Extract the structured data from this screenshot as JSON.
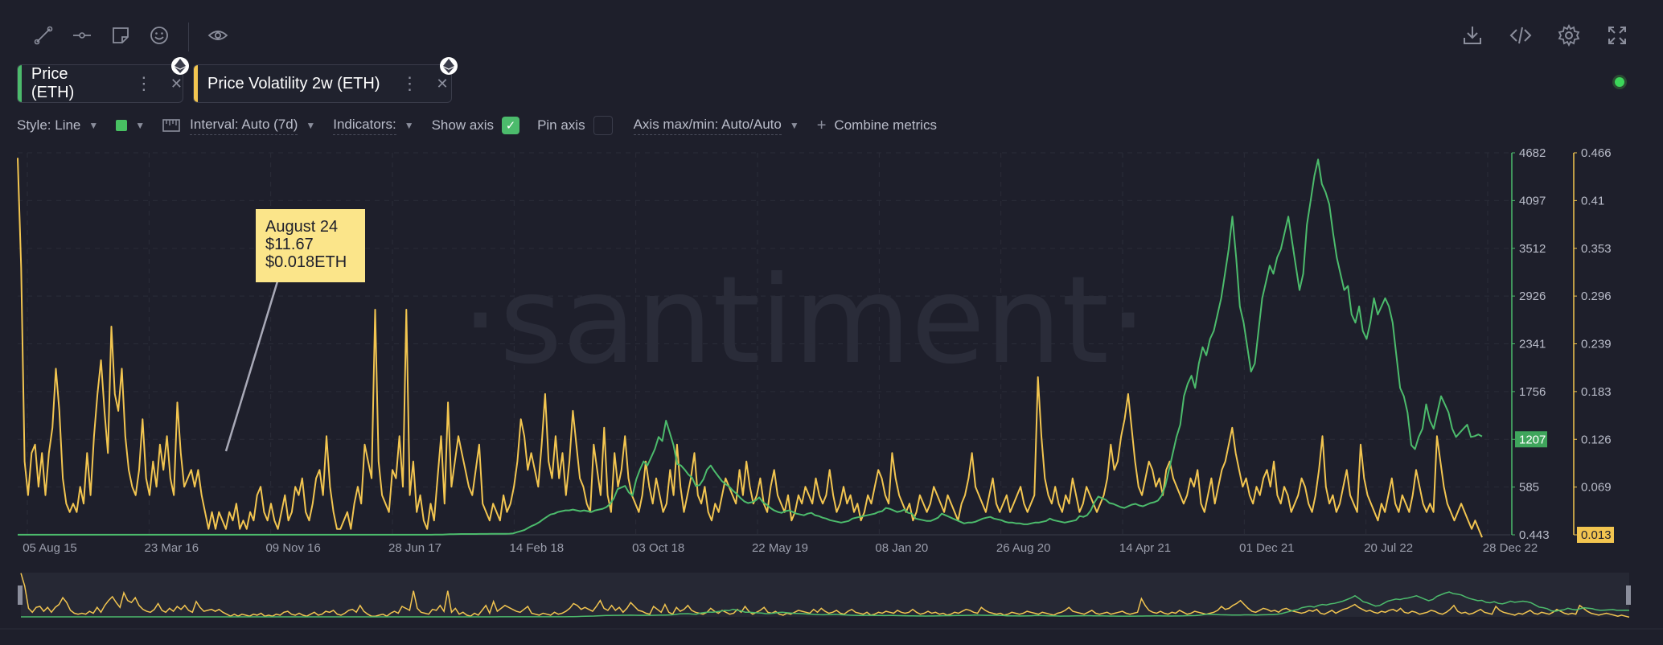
{
  "toolbar": {
    "left_icons": [
      "line-tool-icon",
      "horizontal-ray-icon",
      "note-icon",
      "emoji-icon",
      "eye-icon"
    ],
    "right_icons": [
      "download-icon",
      "embed-code-icon",
      "settings-icon",
      "fullscreen-icon"
    ]
  },
  "metrics": [
    {
      "label": "Price (ETH)",
      "color": "#4cbb6c"
    },
    {
      "label": "Price Volatility 2w (ETH)",
      "color": "#f2c550"
    }
  ],
  "settings": {
    "style": "Style: Line",
    "interval": "Interval: Auto (7d)",
    "indicators": "Indicators:",
    "show_axis": "Show axis",
    "pin_axis": "Pin axis",
    "axis_maxmin": "Axis max/min: Auto/Auto",
    "combine": "Combine metrics"
  },
  "watermark": "·santiment·",
  "tooltip": {
    "date": "August 24",
    "price_usd": "$11.67",
    "price_eth": "$0.018ETH"
  },
  "chart_data": {
    "type": "line",
    "x_ticks": [
      "05 Aug 15",
      "23 Mar 16",
      "09 Nov 16",
      "28 Jun 17",
      "14 Feb 18",
      "03 Oct 18",
      "22 May 19",
      "08 Jan 20",
      "26 Aug 20",
      "14 Apr 21",
      "01 Dec 21",
      "20 Jul 22",
      "28 Dec 22"
    ],
    "price_axis_ticks": [
      "4682",
      "4097",
      "3512",
      "2926",
      "2341",
      "1756",
      "1207",
      "585",
      "0.443"
    ],
    "volatility_axis_ticks": [
      "0.466",
      "0.41",
      "0.353",
      "0.296",
      "0.239",
      "0.183",
      "0.126",
      "0.069",
      "0.013"
    ],
    "price_last_value": "1207",
    "volatility_last_value": "0.013",
    "ylim_price": [
      0.443,
      4682
    ],
    "ylim_volatility": [
      0.013,
      0.466
    ],
    "series": [
      {
        "name": "Price (ETH)",
        "color": "#4cbb6c",
        "values": [
          1,
          1,
          1,
          1,
          1,
          1,
          1,
          1,
          1,
          1,
          1,
          1,
          1,
          1,
          1,
          1,
          1,
          1,
          1,
          1,
          1,
          1,
          1,
          1,
          1,
          1,
          1,
          1,
          1,
          1,
          1,
          1,
          1,
          1,
          1,
          1,
          1,
          1,
          1,
          1,
          1,
          1,
          1,
          1,
          1,
          1,
          1,
          1,
          1,
          1,
          1,
          1,
          1,
          1,
          1,
          1,
          1,
          1,
          1,
          1,
          1,
          1,
          1,
          1,
          1,
          1,
          1,
          1,
          1,
          1,
          1,
          1,
          1,
          1,
          1,
          1,
          1,
          1,
          1,
          1,
          1,
          1,
          1,
          1,
          1,
          1,
          1,
          1,
          1,
          1,
          1,
          1,
          1,
          1,
          1,
          1,
          1,
          1,
          1,
          1,
          1,
          1,
          1,
          1,
          1,
          1,
          1,
          1,
          1,
          1,
          1,
          1,
          2,
          2,
          3,
          5,
          7,
          8,
          9,
          10,
          10,
          10,
          10,
          10,
          11,
          11,
          11,
          12,
          12,
          12,
          13,
          13,
          14,
          18,
          33,
          46,
          60,
          85,
          110,
          130,
          155,
          190,
          220,
          250,
          260,
          280,
          290,
          300,
          300,
          310,
          300,
          290,
          300,
          290,
          280,
          300,
          310,
          320,
          340,
          380,
          450,
          560,
          580,
          600,
          520,
          480,
          680,
          800,
          900,
          850,
          950,
          1050,
          1200,
          1150,
          1400,
          1250,
          1100,
          870,
          850,
          800,
          740,
          700,
          600,
          610,
          680,
          800,
          850,
          780,
          720,
          660,
          620,
          590,
          540,
          500,
          450,
          410,
          390,
          400,
          420,
          460,
          400,
          370,
          330,
          300,
          280,
          270,
          290,
          300,
          280,
          260,
          250,
          240,
          260,
          270,
          240,
          230,
          210,
          200,
          180,
          170,
          160,
          150,
          160,
          170,
          200,
          210,
          220,
          230,
          240,
          250,
          260,
          280,
          290,
          330,
          320,
          300,
          280,
          290,
          310,
          270,
          260,
          200,
          190,
          180,
          170,
          170,
          190,
          210,
          260,
          240,
          220,
          200,
          180,
          160,
          140,
          150,
          150,
          160,
          180,
          200,
          210,
          220,
          200,
          190,
          180,
          160,
          150,
          150,
          140,
          140,
          130,
          130,
          140,
          150,
          150,
          160,
          170,
          200,
          180,
          170,
          160,
          150,
          160,
          170,
          180,
          230,
          220,
          240,
          300,
          400,
          470,
          450,
          430,
          390,
          380,
          360,
          340,
          330,
          350,
          370,
          380,
          360,
          350,
          370,
          390,
          400,
          420,
          480,
          600,
          800,
          1000,
          1200,
          1350,
          1700,
          1850,
          1950,
          1800,
          2100,
          2300,
          2200,
          2400,
          2500,
          2700,
          2900,
          3200,
          3500,
          3900,
          3400,
          2800,
          2600,
          2300,
          2000,
          2100,
          2500,
          2900,
          3100,
          3300,
          3200,
          3400,
          3500,
          3700,
          3900,
          3600,
          3300,
          3000,
          3200,
          3800,
          4100,
          4400,
          4600,
          4300,
          4200,
          4050,
          3700,
          3400,
          3200,
          3000,
          3050,
          2700,
          2600,
          2800,
          2500,
          2400,
          2600,
          2900,
          2700,
          2800,
          2900,
          2800,
          2600,
          2200,
          1800,
          1700,
          1500,
          1100,
          1050,
          1200,
          1300,
          1600,
          1400,
          1300,
          1500,
          1700,
          1600,
          1500,
          1300,
          1200,
          1250,
          1300,
          1350,
          1200,
          1210,
          1230,
          1207
        ]
      },
      {
        "name": "Price Volatility 2w (ETH)",
        "color": "#f2c550",
        "values": [
          0.46,
          0.33,
          0.1,
          0.06,
          0.11,
          0.12,
          0.07,
          0.11,
          0.06,
          0.11,
          0.14,
          0.21,
          0.16,
          0.08,
          0.05,
          0.04,
          0.05,
          0.04,
          0.07,
          0.05,
          0.11,
          0.06,
          0.13,
          0.18,
          0.22,
          0.16,
          0.11,
          0.26,
          0.18,
          0.16,
          0.21,
          0.13,
          0.09,
          0.07,
          0.06,
          0.09,
          0.15,
          0.08,
          0.06,
          0.1,
          0.07,
          0.12,
          0.09,
          0.13,
          0.08,
          0.06,
          0.17,
          0.11,
          0.07,
          0.08,
          0.09,
          0.07,
          0.09,
          0.06,
          0.04,
          0.02,
          0.04,
          0.02,
          0.04,
          0.03,
          0.02,
          0.04,
          0.03,
          0.05,
          0.02,
          0.03,
          0.02,
          0.04,
          0.03,
          0.06,
          0.07,
          0.04,
          0.03,
          0.05,
          0.03,
          0.02,
          0.04,
          0.06,
          0.03,
          0.04,
          0.07,
          0.06,
          0.08,
          0.04,
          0.03,
          0.05,
          0.08,
          0.09,
          0.06,
          0.13,
          0.07,
          0.04,
          0.02,
          0.02,
          0.03,
          0.04,
          0.02,
          0.05,
          0.07,
          0.05,
          0.12,
          0.1,
          0.08,
          0.28,
          0.1,
          0.06,
          0.05,
          0.04,
          0.09,
          0.08,
          0.13,
          0.07,
          0.28,
          0.06,
          0.1,
          0.04,
          0.06,
          0.03,
          0.02,
          0.05,
          0.03,
          0.08,
          0.13,
          0.05,
          0.17,
          0.07,
          0.1,
          0.13,
          0.11,
          0.09,
          0.07,
          0.06,
          0.09,
          0.12,
          0.05,
          0.04,
          0.03,
          0.05,
          0.04,
          0.03,
          0.06,
          0.04,
          0.05,
          0.07,
          0.1,
          0.15,
          0.13,
          0.09,
          0.11,
          0.09,
          0.07,
          0.12,
          0.18,
          0.1,
          0.08,
          0.13,
          0.08,
          0.11,
          0.06,
          0.1,
          0.16,
          0.12,
          0.08,
          0.07,
          0.05,
          0.04,
          0.12,
          0.09,
          0.06,
          0.14,
          0.06,
          0.04,
          0.11,
          0.07,
          0.09,
          0.13,
          0.08,
          0.06,
          0.05,
          0.04,
          0.06,
          0.1,
          0.07,
          0.05,
          0.08,
          0.06,
          0.04,
          0.05,
          0.09,
          0.06,
          0.12,
          0.07,
          0.04,
          0.06,
          0.08,
          0.11,
          0.06,
          0.05,
          0.07,
          0.04,
          0.03,
          0.05,
          0.04,
          0.06,
          0.08,
          0.07,
          0.06,
          0.05,
          0.09,
          0.06,
          0.1,
          0.07,
          0.05,
          0.06,
          0.08,
          0.05,
          0.04,
          0.07,
          0.09,
          0.06,
          0.05,
          0.04,
          0.06,
          0.03,
          0.04,
          0.06,
          0.05,
          0.07,
          0.06,
          0.05,
          0.08,
          0.06,
          0.05,
          0.06,
          0.09,
          0.06,
          0.04,
          0.05,
          0.07,
          0.05,
          0.06,
          0.04,
          0.05,
          0.03,
          0.04,
          0.06,
          0.05,
          0.07,
          0.09,
          0.08,
          0.06,
          0.05,
          0.11,
          0.08,
          0.06,
          0.05,
          0.04,
          0.05,
          0.03,
          0.04,
          0.06,
          0.05,
          0.04,
          0.05,
          0.07,
          0.06,
          0.05,
          0.04,
          0.06,
          0.05,
          0.04,
          0.03,
          0.05,
          0.06,
          0.08,
          0.11,
          0.07,
          0.06,
          0.05,
          0.04,
          0.06,
          0.08,
          0.05,
          0.04,
          0.05,
          0.06,
          0.04,
          0.05,
          0.06,
          0.07,
          0.05,
          0.04,
          0.05,
          0.06,
          0.2,
          0.13,
          0.08,
          0.06,
          0.05,
          0.07,
          0.05,
          0.04,
          0.06,
          0.05,
          0.08,
          0.06,
          0.04,
          0.05,
          0.07,
          0.06,
          0.05,
          0.04,
          0.05,
          0.06,
          0.08,
          0.12,
          0.09,
          0.1,
          0.13,
          0.15,
          0.18,
          0.14,
          0.1,
          0.07,
          0.06,
          0.08,
          0.1,
          0.09,
          0.07,
          0.08,
          0.06,
          0.09,
          0.1,
          0.08,
          0.07,
          0.06,
          0.05,
          0.06,
          0.08,
          0.07,
          0.09,
          0.05,
          0.04,
          0.06,
          0.08,
          0.05,
          0.07,
          0.09,
          0.1,
          0.12,
          0.14,
          0.11,
          0.09,
          0.07,
          0.08,
          0.06,
          0.05,
          0.07,
          0.06,
          0.08,
          0.09,
          0.07,
          0.1,
          0.06,
          0.05,
          0.07,
          0.06,
          0.04,
          0.05,
          0.06,
          0.08,
          0.07,
          0.05,
          0.04,
          0.06,
          0.09,
          0.13,
          0.07,
          0.05,
          0.06,
          0.04,
          0.05,
          0.07,
          0.09,
          0.06,
          0.05,
          0.04,
          0.12,
          0.08,
          0.06,
          0.05,
          0.04,
          0.03,
          0.05,
          0.04,
          0.06,
          0.08,
          0.05,
          0.04,
          0.06,
          0.05,
          0.04,
          0.06,
          0.09,
          0.07,
          0.05,
          0.04,
          0.05,
          0.04,
          0.13,
          0.1,
          0.07,
          0.05,
          0.04,
          0.03,
          0.04,
          0.05,
          0.04,
          0.03,
          0.02,
          0.03,
          0.02,
          0.01
        ]
      }
    ]
  }
}
